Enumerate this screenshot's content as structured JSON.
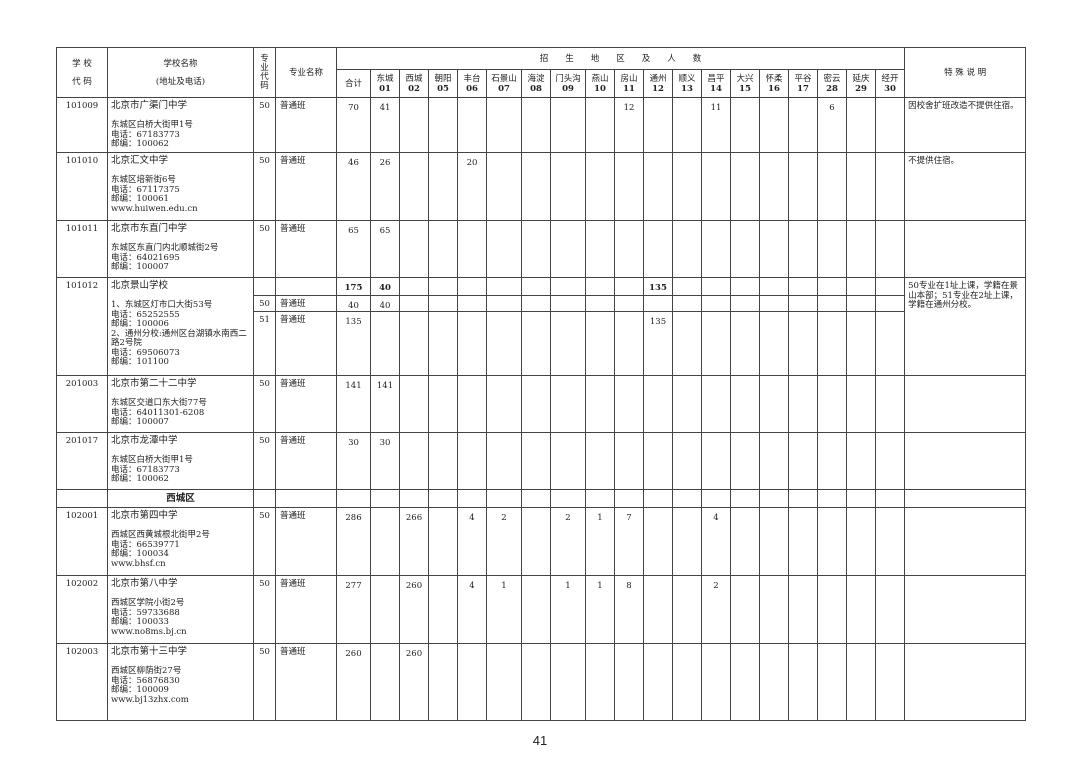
{
  "header": {
    "school_code": [
      "学 校",
      "代 码"
    ],
    "school_name": [
      "学校名称",
      "(地址及电话)"
    ],
    "major_code": "专业代码",
    "major_name": "专业名称",
    "region_group": "招　　生　　地　　区　　及　　人　　数",
    "total": "合计",
    "note": "特 殊 说 明",
    "regions": [
      {
        "name": "东城",
        "code": "01"
      },
      {
        "name": "西城",
        "code": "02"
      },
      {
        "name": "朝阳",
        "code": "05"
      },
      {
        "name": "丰台",
        "code": "06"
      },
      {
        "name": "石景山",
        "code": "07"
      },
      {
        "name": "海淀",
        "code": "08"
      },
      {
        "name": "门头沟",
        "code": "09"
      },
      {
        "name": "燕山",
        "code": "10"
      },
      {
        "name": "房山",
        "code": "11"
      },
      {
        "name": "通州",
        "code": "12"
      },
      {
        "name": "顺义",
        "code": "13"
      },
      {
        "name": "昌平",
        "code": "14"
      },
      {
        "name": "大兴",
        "code": "15"
      },
      {
        "name": "怀柔",
        "code": "16"
      },
      {
        "name": "平谷",
        "code": "17"
      },
      {
        "name": "密云",
        "code": "28"
      },
      {
        "name": "延庆",
        "code": "29"
      },
      {
        "name": "经开",
        "code": "30"
      }
    ]
  },
  "rows": [
    {
      "code": "101009",
      "name": "北京市广渠门中学",
      "lines": [
        "东城区白桥大街甲1号",
        "电话：67183773",
        "邮编：100062"
      ],
      "majors": [
        {
          "code": "50",
          "name": "普通班",
          "total": "70",
          "counts": {
            "01": "41",
            "11": "12",
            "14": "11",
            "28": "6"
          }
        }
      ],
      "note": "因校舍扩班改造不提供住宿。"
    },
    {
      "code": "101010",
      "name": "北京汇文中学",
      "lines": [
        "东城区培新街6号",
        "电话：67117375",
        "邮编：100061",
        "www.huiwen.edu.cn"
      ],
      "majors": [
        {
          "code": "50",
          "name": "普通班",
          "total": "46",
          "counts": {
            "01": "26",
            "06": "20"
          }
        }
      ],
      "note": "不提供住宿。"
    },
    {
      "code": "101011",
      "name": "北京市东直门中学",
      "lines": [
        "东城区东直门内北顺城街2号",
        "电话：64021695",
        "邮编：100007"
      ],
      "majors": [
        {
          "code": "50",
          "name": "普通班",
          "total": "65",
          "counts": {
            "01": "65"
          }
        }
      ],
      "note": ""
    },
    {
      "code": "101012",
      "name": "北京景山学校",
      "lines": [
        "1、东城区灯市口大街53号",
        "电话：65252555",
        "邮编：100006",
        "2、通州分校:通州区台湖镇水南西二路2号院",
        "电话：69506073",
        "邮编：101100"
      ],
      "summary": {
        "total": "175",
        "counts": {
          "01": "40",
          "12": "135"
        }
      },
      "majors": [
        {
          "code": "50",
          "name": "普通班",
          "total": "40",
          "counts": {
            "01": "40"
          }
        },
        {
          "code": "51",
          "name": "普通班",
          "total": "135",
          "counts": {
            "12": "135"
          }
        }
      ],
      "note": "50专业在1址上课，学籍在景山本部；51专业在2址上课，学籍在通州分校。"
    },
    {
      "code": "201003",
      "name": "北京市第二十二中学",
      "lines": [
        "东城区交道口东大街77号",
        "电话：64011301-6208",
        "邮编：100007"
      ],
      "majors": [
        {
          "code": "50",
          "name": "普通班",
          "total": "141",
          "counts": {
            "01": "141"
          }
        }
      ],
      "note": ""
    },
    {
      "code": "201017",
      "name": "北京市龙潭中学",
      "lines": [
        "东城区白桥大街甲1号",
        "电话：67183773",
        "邮编：100062"
      ],
      "majors": [
        {
          "code": "50",
          "name": "普通班",
          "total": "30",
          "counts": {
            "01": "30"
          }
        }
      ],
      "note": ""
    },
    {
      "district": "西城区"
    },
    {
      "code": "102001",
      "name": "北京市第四中学",
      "lines": [
        "西城区西黄城根北街甲2号",
        "电话：66539771",
        "邮编：100034",
        "www.bhsf.cn"
      ],
      "majors": [
        {
          "code": "50",
          "name": "普通班",
          "total": "286",
          "counts": {
            "02": "266",
            "06": "4",
            "07": "2",
            "09": "2",
            "10": "1",
            "11": "7",
            "14": "4"
          }
        }
      ],
      "note": ""
    },
    {
      "code": "102002",
      "name": "北京市第八中学",
      "lines": [
        "西城区学院小街2号",
        "电话：59733688",
        "邮编：100033",
        "www.no8ms.bj.cn"
      ],
      "majors": [
        {
          "code": "50",
          "name": "普通班",
          "total": "277",
          "counts": {
            "02": "260",
            "06": "4",
            "07": "1",
            "09": "1",
            "10": "1",
            "11": "8",
            "14": "2"
          }
        }
      ],
      "note": ""
    },
    {
      "code": "102003",
      "name": "北京市第十三中学",
      "lines": [
        "西城区柳荫街27号",
        "电话：56876830",
        "邮编：100009",
        "www.bj13zhx.com"
      ],
      "majors": [
        {
          "code": "50",
          "name": "普通班",
          "total": "260",
          "counts": {
            "02": "260"
          }
        }
      ],
      "note": ""
    }
  ],
  "page_number": "41"
}
